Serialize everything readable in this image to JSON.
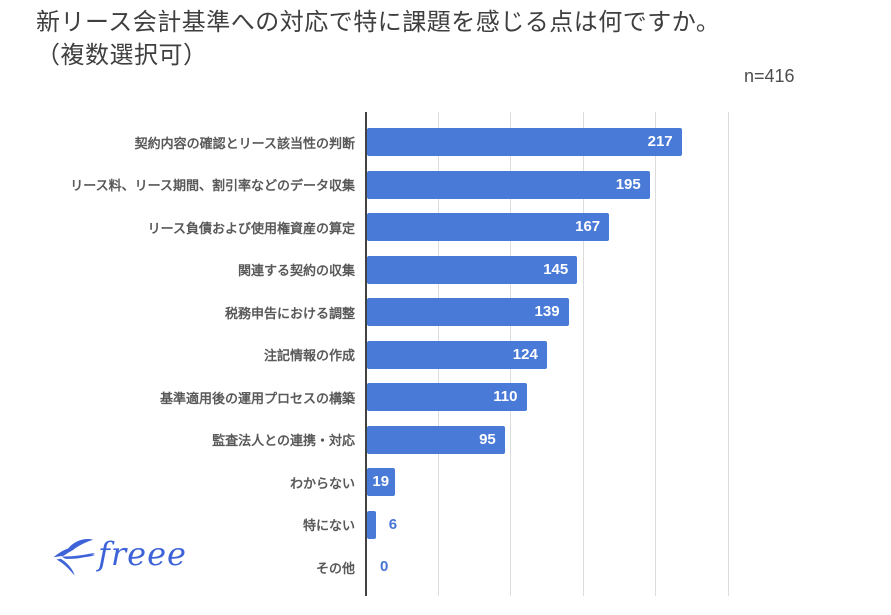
{
  "header": {
    "title_line1": "新リース会計基準への対応で特に課題を感じる点は何ですか。",
    "title_line2": "（複数選択可）",
    "sample_size": "n=416"
  },
  "chart_data": {
    "type": "bar",
    "orientation": "horizontal",
    "title": "新リース会計基準への対応で特に課題を感じる点は何ですか。（複数選択可）",
    "sample_size": 416,
    "categories": [
      "契約内容の確認とリース該当性の判断",
      "リース料、リース期間、割引率などのデータ収集",
      "リース負債および使用権資産の算定",
      "関連する契約の収集",
      "税務申告における調整",
      "注記情報の作成",
      "基準適用後の運用プロセスの構築",
      "監査法人との連携・対応",
      "わからない",
      "特にない",
      "その他"
    ],
    "values": [
      217,
      195,
      167,
      145,
      139,
      124,
      110,
      95,
      19,
      6,
      0
    ],
    "xlabel": "",
    "ylabel": "",
    "xlim": [
      0,
      250
    ],
    "gridlines": [
      0,
      50,
      100,
      150,
      200,
      250
    ],
    "grid": "vertical",
    "legend_position": "none",
    "data_labels": true,
    "colors": {
      "bar": "#4a7ad8",
      "value_label_inside": "#ffffff",
      "value_label_outside": "#4674d6",
      "gridline": "#dcdcdc",
      "axis_line": "#424242",
      "category_label": "#595959",
      "title_text": "#3f3f3f"
    }
  },
  "footer": {
    "logo_text": "freee",
    "logo_color": "#3e63d9",
    "logo_icon": "swallow-icon"
  }
}
